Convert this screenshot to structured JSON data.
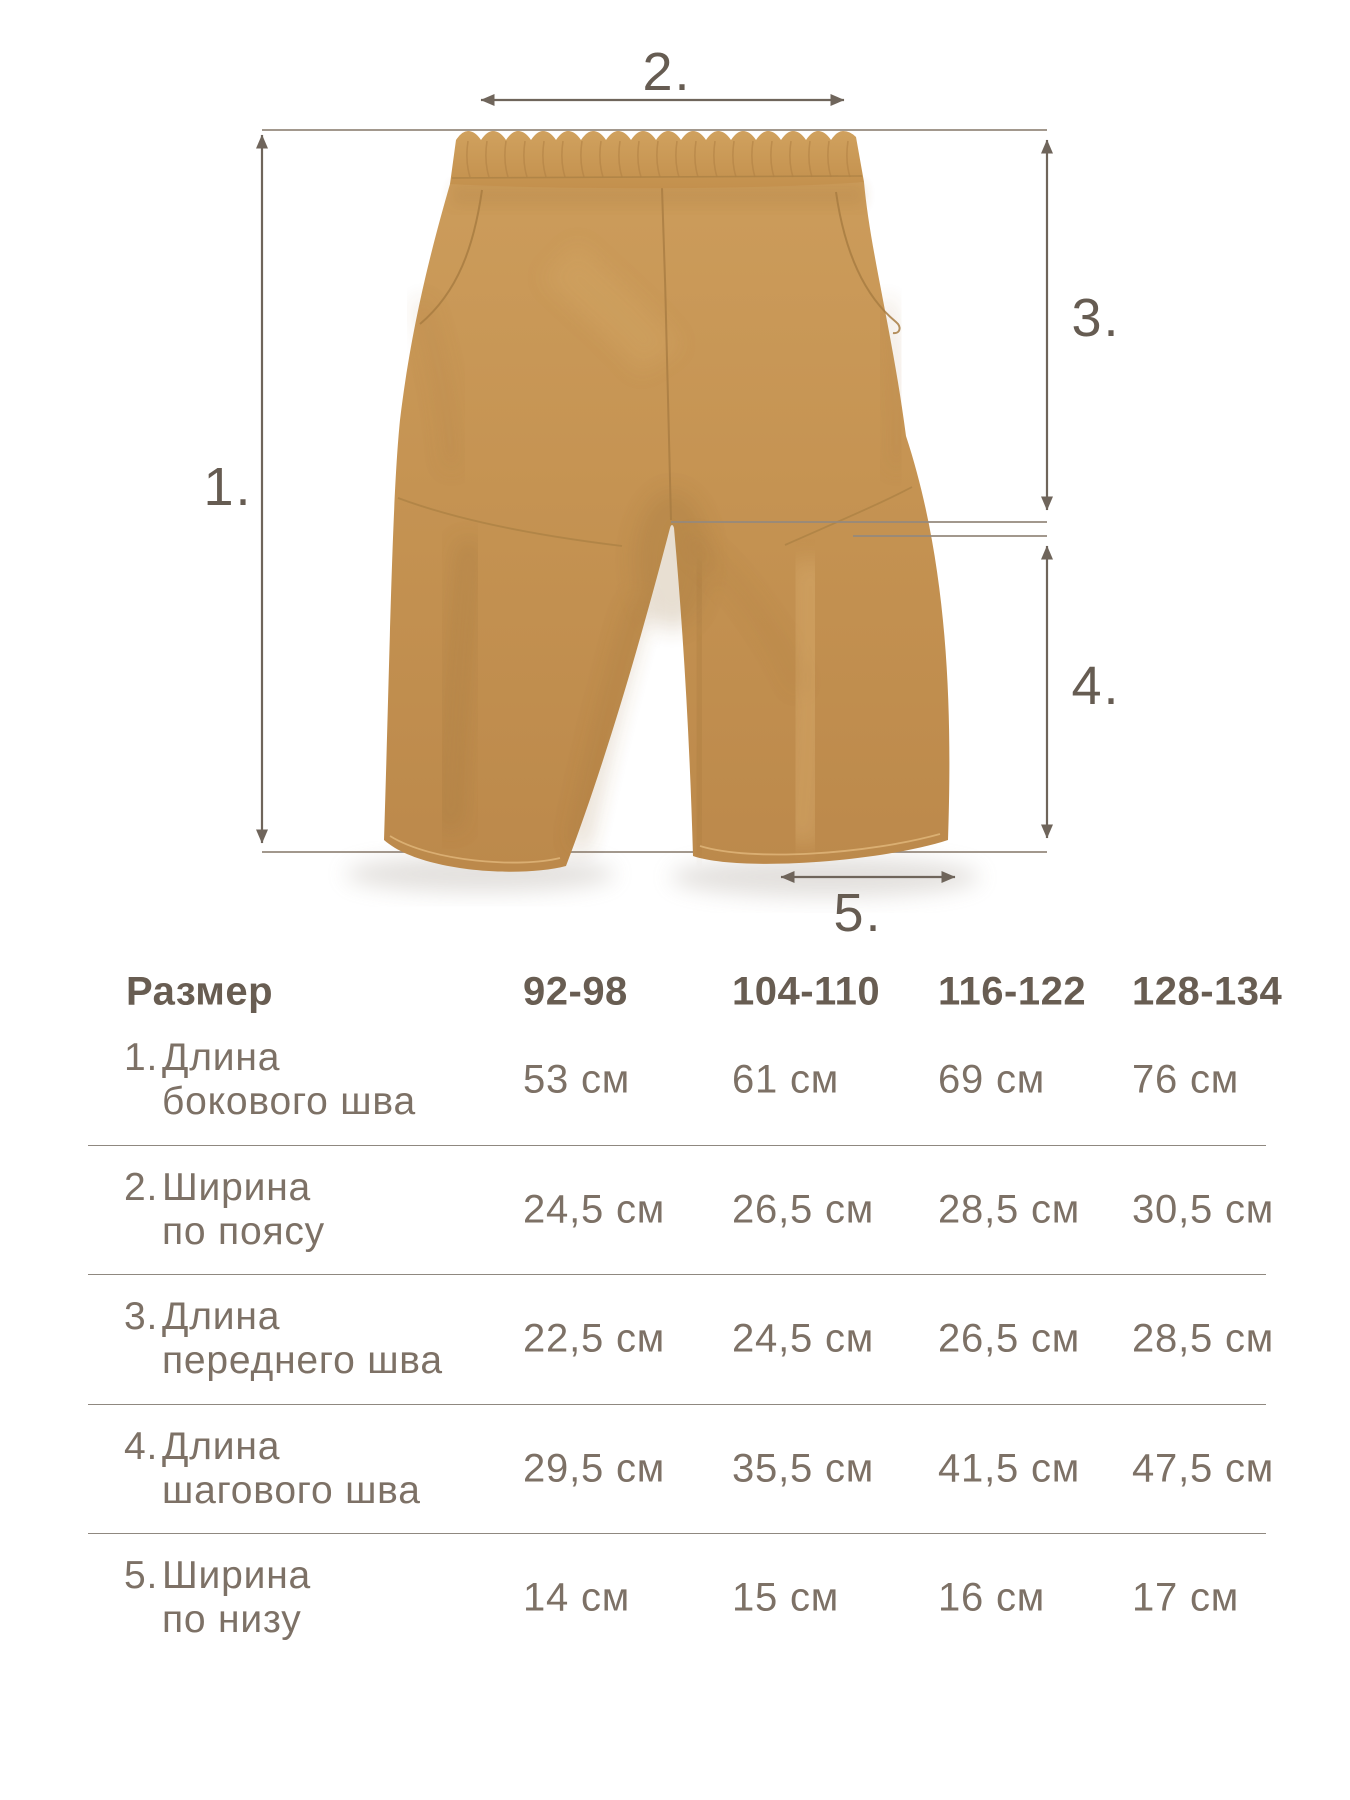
{
  "diagram": {
    "labels": [
      "1.",
      "2.",
      "3.",
      "4.",
      "5."
    ],
    "figure": "kids-trousers-front-view"
  },
  "table": {
    "size_label": "Размер",
    "sizes": [
      "92-98",
      "104-110",
      "116-122",
      "128-134"
    ],
    "rows": [
      {
        "num": "1.",
        "name_line1": "Длина",
        "name_line2": "бокового шва",
        "values": [
          "53 см",
          "61 см",
          "69 см",
          "76 см"
        ]
      },
      {
        "num": "2.",
        "name_line1": "Ширина",
        "name_line2": "по поясу",
        "values": [
          "24,5 см",
          "26,5 см",
          "28,5 см",
          "30,5 см"
        ]
      },
      {
        "num": "3.",
        "name_line1": "Длина",
        "name_line2": "переднего шва",
        "values": [
          "22,5 см",
          "24,5 см",
          "26,5 см",
          "28,5 см"
        ]
      },
      {
        "num": "4.",
        "name_line1": "Длина",
        "name_line2": "шагового шва",
        "values": [
          "29,5 см",
          "35,5 см",
          "41,5 см",
          "47,5 см"
        ]
      },
      {
        "num": "5.",
        "name_line1": "Ширина",
        "name_line2": "по низу",
        "values": [
          "14 см",
          "15 см",
          "16 см",
          "17 см"
        ]
      }
    ]
  },
  "colors": {
    "fabric": "#C69350",
    "fabric-light": "#D4A765",
    "fabric-dark": "#B2813F",
    "line": "#6f655b",
    "connector": "#95897d",
    "label": "#665c52",
    "text": "#7d7166",
    "header-text": "#685d52",
    "divider": "#6f665c"
  }
}
